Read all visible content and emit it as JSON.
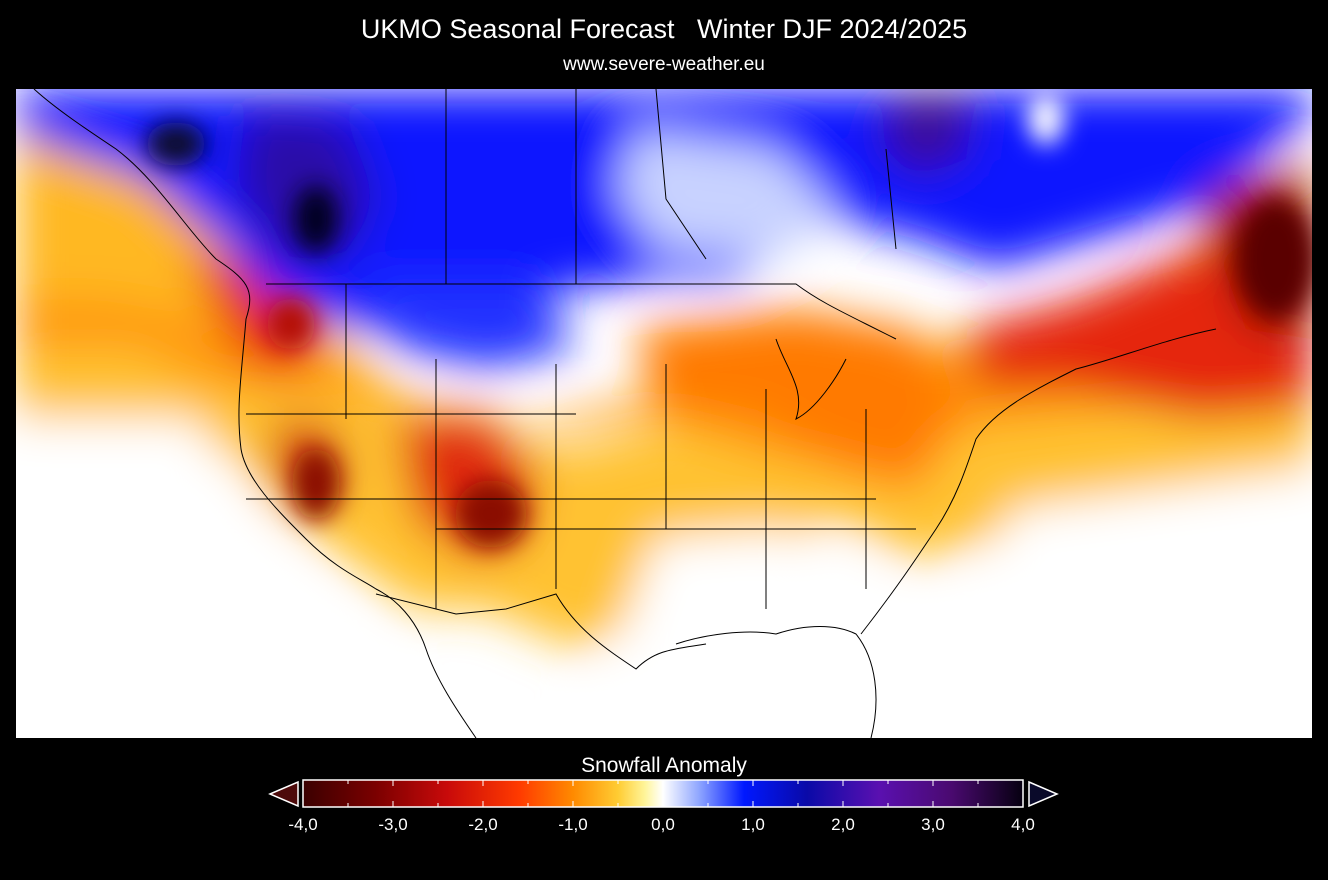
{
  "header": {
    "title": "UKMO Seasonal Forecast   Winter DJF 2024/2025",
    "source": "www.severe-weather.eu"
  },
  "map": {
    "variable": "Snowfall Anomaly",
    "season": "Winter DJF 2024/2025",
    "model": "UKMO",
    "region": "North America"
  },
  "colorbar": {
    "title": "Snowfall Anomaly",
    "min": -4.0,
    "max": 4.0,
    "tick_labels": [
      "-4,0",
      "-3,0",
      "-2,0",
      "-1,0",
      "0,0",
      "1,0",
      "2,0",
      "3,0",
      "4,0"
    ],
    "stops": [
      {
        "value": -4.0,
        "color": "#3b0000"
      },
      {
        "value": -3.2,
        "color": "#7a0000"
      },
      {
        "value": -2.4,
        "color": "#c80a0a"
      },
      {
        "value": -1.6,
        "color": "#ff3a00"
      },
      {
        "value": -1.0,
        "color": "#ff8a00"
      },
      {
        "value": -0.5,
        "color": "#ffcc33"
      },
      {
        "value": -0.2,
        "color": "#fff59a"
      },
      {
        "value": 0.0,
        "color": "#ffffff"
      },
      {
        "value": 0.4,
        "color": "#8fa6ff"
      },
      {
        "value": 0.9,
        "color": "#0018ff"
      },
      {
        "value": 1.6,
        "color": "#0a0aa8"
      },
      {
        "value": 2.4,
        "color": "#5a10b0"
      },
      {
        "value": 3.2,
        "color": "#4a0a70"
      },
      {
        "value": 4.0,
        "color": "#060010"
      }
    ],
    "extend_low_color": "#4d0a0a",
    "extend_high_color": "#0a0a2a"
  }
}
